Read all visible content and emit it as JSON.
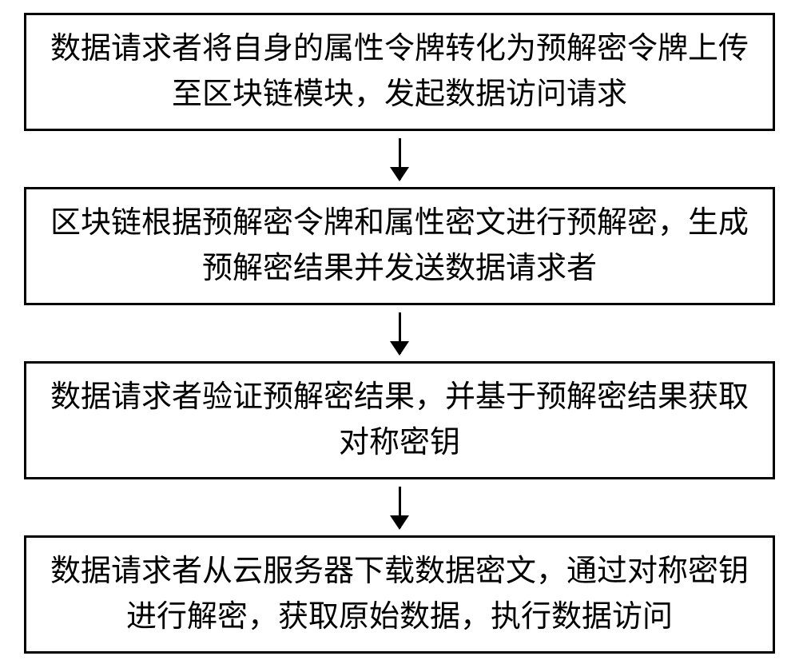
{
  "flowchart": {
    "type": "flowchart",
    "direction": "vertical",
    "box_border_color": "#000000",
    "box_border_width": 3,
    "box_background": "#ffffff",
    "arrow_color": "#000000",
    "arrow_line_width": 3,
    "arrow_head_width": 24,
    "arrow_head_height": 18,
    "font_size": 38,
    "font_family": "SimSun",
    "text_color": "#000000",
    "steps": [
      {
        "id": "step1",
        "text": "数据请求者将自身的属性令牌转化为预解密令牌上传至区块链模块，发起数据访问请求"
      },
      {
        "id": "step2",
        "text": "区块链根据预解密令牌和属性密文进行预解密，生成预解密结果并发送数据请求者"
      },
      {
        "id": "step3",
        "text": "数据请求者验证预解密结果，并基于预解密结果获取对称密钥"
      },
      {
        "id": "step4",
        "text": "数据请求者从云服务器下载数据密文，通过对称密钥进行解密，获取原始数据，执行数据访问"
      }
    ]
  }
}
